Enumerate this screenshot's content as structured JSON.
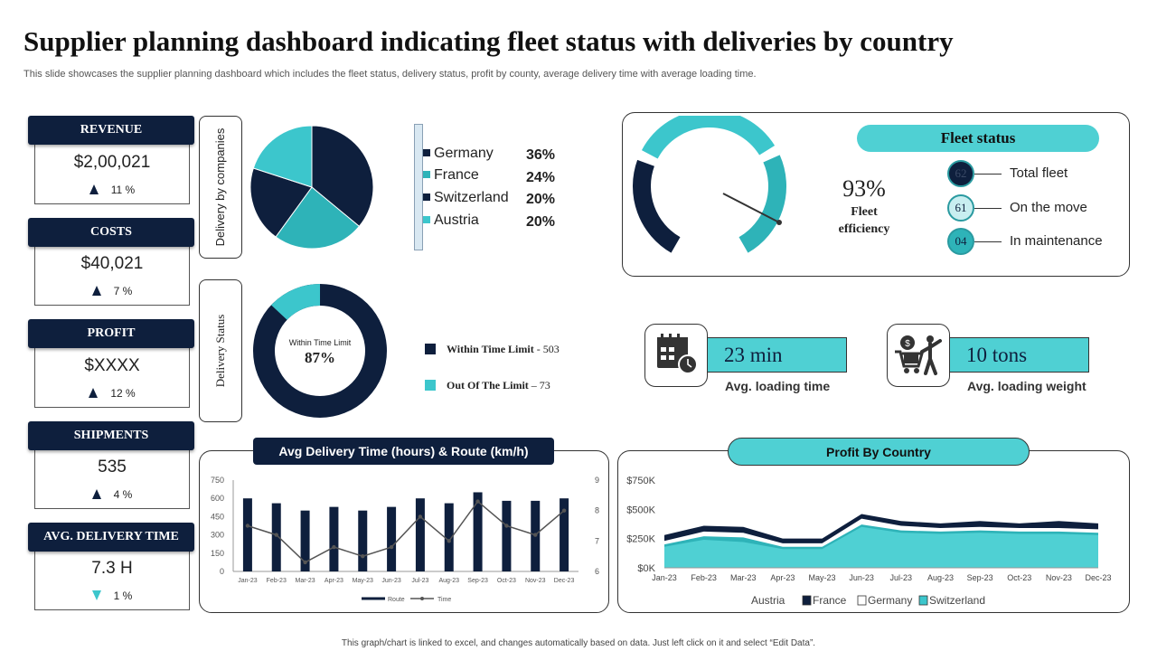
{
  "header": {
    "title": "Supplier planning dashboard indicating fleet status with deliveries by country",
    "subtitle": "This slide showcases the supplier planning dashboard which includes the fleet status, delivery status, profit by county, average delivery time with average loading time."
  },
  "kpis": [
    {
      "label": "REVENUE",
      "value": "$2,00,021",
      "change": "11 %",
      "trend": "up"
    },
    {
      "label": "COSTS",
      "value": "$40,021",
      "change": "7 %",
      "trend": "up"
    },
    {
      "label": "PROFIT",
      "value": "$XXXX",
      "change": "12 %",
      "trend": "up"
    },
    {
      "label": "SHIPMENTS",
      "value": "535",
      "change": "4 %",
      "trend": "up"
    },
    {
      "label": "AVG. DELIVERY TIME",
      "value": "7.3 H",
      "change": "1 %",
      "trend": "down"
    }
  ],
  "delivery_by_companies": {
    "label": "Delivery by companies",
    "items": [
      {
        "name": "Germany",
        "pct": "36%",
        "value": 36,
        "color": "#0e1f3d"
      },
      {
        "name": "France",
        "pct": "24%",
        "value": 24,
        "color": "#2eb3b8"
      },
      {
        "name": "Switzerland",
        "pct": "20%",
        "value": 20,
        "color": "#0e1f3d"
      },
      {
        "name": "Austria",
        "pct": "20%",
        "value": 20,
        "color": "#3cc6cc"
      }
    ]
  },
  "delivery_status": {
    "label": "Delivery Status",
    "center_caption": "Within Time Limit",
    "center_value": "87%",
    "within_fraction": 0.87,
    "legend": [
      {
        "name": "Within Time Limit",
        "value": "503",
        "color": "#0e1f3d"
      },
      {
        "name": "Out Of The Limit",
        "value": "73",
        "color": "#3cc6cc"
      }
    ]
  },
  "fleet": {
    "title": "Fleet status",
    "efficiency_value": "93%",
    "efficiency_label": "Fleet efficiency",
    "efficiency_fraction": 0.93,
    "items": [
      {
        "count": "62",
        "label": "Total fleet"
      },
      {
        "count": "61",
        "label": "On the move"
      },
      {
        "count": "04",
        "label": "In maintenance"
      }
    ]
  },
  "stats": {
    "loading_time": {
      "value": "23 min",
      "label": "Avg. loading time"
    },
    "loading_weight": {
      "value": "10 tons",
      "label": "Avg. loading weight"
    }
  },
  "footer": "This graph/chart is linked to excel, and changes automatically based on data. Just left click on it and select “Edit Data”.",
  "colors": {
    "navy": "#0e1f3d",
    "teal": "#3cc6cc",
    "teal_dark": "#2eb3b8"
  },
  "chart_data": [
    {
      "type": "bar",
      "title": "Avg Delivery Time (hours) & Route (km/h)",
      "categories": [
        "Jan-23",
        "Feb-23",
        "Mar-23",
        "Apr-23",
        "May-23",
        "Jun-23",
        "Jul-23",
        "Aug-23",
        "Sep-23",
        "Oct-23",
        "Nov-23",
        "Dec-23"
      ],
      "series": [
        {
          "name": "Route",
          "type": "bar",
          "axis": "left",
          "values": [
            600,
            560,
            500,
            530,
            500,
            530,
            600,
            560,
            650,
            580,
            580,
            600
          ]
        },
        {
          "name": "Time",
          "type": "line",
          "axis": "right",
          "values": [
            7.5,
            7.2,
            6.3,
            6.8,
            6.5,
            6.8,
            7.8,
            7.0,
            8.3,
            7.5,
            7.2,
            8.0
          ]
        }
      ],
      "yticks_left": [
        "0",
        "150",
        "300",
        "450",
        "600",
        "750"
      ],
      "ylim_left": [
        0,
        750
      ],
      "yticks_right": [
        "6",
        "7",
        "8",
        "9"
      ],
      "ylim_right": [
        6,
        9
      ],
      "legend": [
        "Route",
        "Time"
      ]
    },
    {
      "type": "area",
      "title": "Profit By Country",
      "categories": [
        "Jan-23",
        "Feb-23",
        "Mar-23",
        "Apr-23",
        "May-23",
        "Jun-23",
        "Jul-23",
        "Aug-23",
        "Sep-23",
        "Oct-23",
        "Nov-23",
        "Dec-23"
      ],
      "series": [
        {
          "name": "Austria",
          "color": "#3cc6cc",
          "values": [
            180,
            240,
            220,
            160,
            160,
            350,
            300,
            290,
            300,
            290,
            290,
            280
          ]
        },
        {
          "name": "France",
          "color": "#0e1f3d",
          "values": [
            280,
            360,
            350,
            250,
            250,
            460,
            400,
            380,
            400,
            380,
            400,
            380
          ]
        },
        {
          "name": "Germany",
          "color": "#ffffff",
          "values": [
            230,
            310,
            300,
            210,
            210,
            420,
            360,
            340,
            350,
            340,
            340,
            330
          ]
        },
        {
          "name": "Switzerland",
          "color": "#3cc6cc",
          "values": [
            200,
            270,
            260,
            180,
            180,
            370,
            320,
            310,
            320,
            310,
            310,
            300
          ]
        }
      ],
      "yticks": [
        "$0K",
        "$250K",
        "$500K",
        "$750K"
      ],
      "ylim": [
        0,
        750
      ]
    }
  ]
}
